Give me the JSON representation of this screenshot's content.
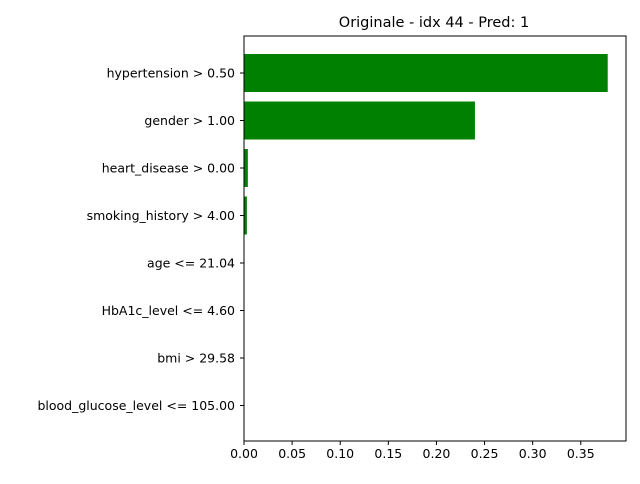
{
  "chart_data": {
    "type": "bar",
    "orientation": "horizontal",
    "title": "Originale - idx 44 - Pred: 1",
    "xlabel": "",
    "ylabel": "",
    "categories": [
      "hypertension > 0.50",
      "gender > 1.00",
      "heart_disease > 0.00",
      "smoking_history > 4.00",
      "age <= 21.04",
      "HbA1c_level <= 4.60",
      "bmi > 29.58",
      "blood_glucose_level <= 105.00"
    ],
    "values": [
      0.378,
      0.24,
      0.004,
      0.003,
      0.0,
      0.0,
      0.0,
      0.0
    ],
    "bar_color": "#008000",
    "xlim": [
      0.0,
      0.397
    ],
    "xticks": [
      0.0,
      0.05,
      0.1,
      0.15,
      0.2,
      0.25,
      0.3,
      0.35
    ],
    "xtick_labels": [
      "0.00",
      "0.05",
      "0.10",
      "0.15",
      "0.20",
      "0.25",
      "0.30",
      "0.35"
    ],
    "grid": false,
    "legend": "none"
  }
}
